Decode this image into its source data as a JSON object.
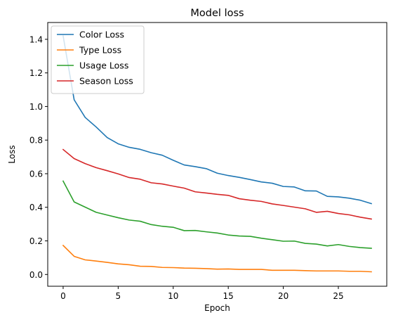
{
  "chart_data": {
    "type": "line",
    "title": "Model loss",
    "xlabel": "Epoch",
    "ylabel": "Loss",
    "xlim": [
      -1.4,
      29.4
    ],
    "ylim": [
      -0.07,
      1.5
    ],
    "xticks": [
      0,
      5,
      10,
      15,
      20,
      25
    ],
    "yticks": [
      0.0,
      0.2,
      0.4,
      0.6,
      0.8,
      1.0,
      1.2,
      1.4
    ],
    "grid": false,
    "legend_position": "top-left",
    "x": [
      0,
      1,
      2,
      3,
      4,
      5,
      6,
      7,
      8,
      9,
      10,
      11,
      12,
      13,
      14,
      15,
      16,
      17,
      18,
      19,
      20,
      21,
      22,
      23,
      24,
      25,
      26,
      27,
      28
    ],
    "series": [
      {
        "name": "Color Loss",
        "color": "#1f77b4",
        "values": [
          1.42,
          1.04,
          0.935,
          0.878,
          0.815,
          0.778,
          0.757,
          0.745,
          0.725,
          0.71,
          0.68,
          0.652,
          0.642,
          0.63,
          0.603,
          0.589,
          0.578,
          0.565,
          0.551,
          0.543,
          0.524,
          0.521,
          0.498,
          0.497,
          0.465,
          0.462,
          0.454,
          0.442,
          0.422
        ]
      },
      {
        "name": "Type Loss",
        "color": "#ff7f0e",
        "values": [
          0.173,
          0.108,
          0.087,
          0.08,
          0.072,
          0.063,
          0.058,
          0.049,
          0.048,
          0.042,
          0.041,
          0.038,
          0.037,
          0.035,
          0.032,
          0.033,
          0.03,
          0.03,
          0.03,
          0.025,
          0.025,
          0.025,
          0.023,
          0.021,
          0.021,
          0.021,
          0.019,
          0.019,
          0.016
        ]
      },
      {
        "name": "Usage Loss",
        "color": "#2ca02c",
        "values": [
          0.556,
          0.432,
          0.401,
          0.37,
          0.354,
          0.338,
          0.324,
          0.317,
          0.297,
          0.287,
          0.281,
          0.261,
          0.262,
          0.254,
          0.247,
          0.235,
          0.229,
          0.227,
          0.216,
          0.207,
          0.198,
          0.199,
          0.185,
          0.181,
          0.17,
          0.178,
          0.167,
          0.16,
          0.156
        ]
      },
      {
        "name": "Season Loss",
        "color": "#d62728",
        "values": [
          0.744,
          0.69,
          0.66,
          0.636,
          0.618,
          0.599,
          0.577,
          0.567,
          0.546,
          0.539,
          0.526,
          0.514,
          0.492,
          0.485,
          0.477,
          0.471,
          0.451,
          0.442,
          0.435,
          0.42,
          0.411,
          0.401,
          0.391,
          0.37,
          0.376,
          0.363,
          0.355,
          0.341,
          0.33
        ]
      }
    ]
  }
}
